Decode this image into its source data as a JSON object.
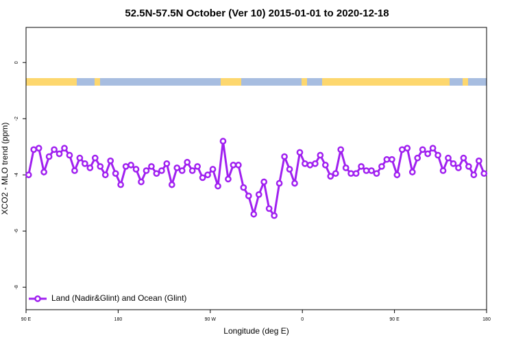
{
  "chart_data": {
    "type": "line",
    "title": "52.5N-57.5N October (Ver 10)   2015-01-01 to 2020-12-18",
    "xlabel": "Longitude (deg E)",
    "ylabel": "XCO2 - MLO trend (ppm)",
    "xlim": [
      90,
      540
    ],
    "xticks": [
      {
        "value": 90,
        "label": "90 E"
      },
      {
        "value": 180,
        "label": "180"
      },
      {
        "value": 270,
        "label": "90 W"
      },
      {
        "value": 360,
        "label": "0"
      },
      {
        "value": 450,
        "label": "90 E"
      },
      {
        "value": 540,
        "label": "180"
      }
    ],
    "ylim": [
      -8.8,
      1.25
    ],
    "yticks": [
      0,
      -2,
      -4,
      -6,
      -8
    ],
    "legend": "bottom-left",
    "x": [
      92.5,
      97.5,
      102.5,
      107.5,
      112.5,
      117.5,
      122.5,
      127.5,
      132.5,
      137.5,
      142.5,
      147.5,
      152.5,
      157.5,
      162.5,
      167.5,
      172.5,
      177.5,
      182.5,
      187.5,
      192.5,
      197.5,
      202.5,
      207.5,
      212.5,
      217.5,
      222.5,
      227.5,
      232.5,
      237.5,
      242.5,
      247.5,
      252.5,
      257.5,
      262.5,
      267.5,
      272.5,
      277.5,
      282.5,
      287.5,
      292.5,
      297.5,
      302.5,
      307.5,
      312.5,
      317.5,
      322.5,
      327.5,
      332.5,
      337.5,
      342.5,
      347.5,
      352.5,
      357.5,
      362.5,
      367.5,
      372.5,
      377.5,
      382.5,
      387.5,
      392.5,
      397.5,
      402.5,
      407.5,
      412.5,
      417.5,
      422.5,
      427.5,
      432.5,
      437.5,
      442.5,
      447.5,
      452.5,
      457.5,
      462.5,
      467.5,
      472.5,
      477.5,
      482.5,
      487.5,
      492.5,
      497.5,
      502.5,
      507.5,
      512.5,
      517.5,
      522.5,
      527.5,
      532.5,
      537.5
    ],
    "series": [
      {
        "name": "Land (Nadir&Glint) and Ocean (Glint)",
        "color": "#a020f0",
        "values": [
          -4.0,
          -3.1,
          -3.05,
          -3.9,
          -3.35,
          -3.1,
          -3.25,
          -3.05,
          -3.3,
          -3.85,
          -3.4,
          -3.6,
          -3.75,
          -3.4,
          -3.7,
          -4.0,
          -3.5,
          -3.95,
          -4.35,
          -3.7,
          -3.65,
          -3.8,
          -4.25,
          -3.85,
          -3.7,
          -3.95,
          -3.85,
          -3.6,
          -4.35,
          -3.75,
          -3.85,
          -3.55,
          -3.85,
          -3.7,
          -4.1,
          -4.0,
          -3.8,
          -4.4,
          -2.8,
          -4.15,
          -3.65,
          -3.65,
          -4.45,
          -4.75,
          -5.4,
          -4.7,
          -4.25,
          -5.2,
          -5.45,
          -4.3,
          -3.35,
          -3.8,
          -4.3,
          -3.2,
          -3.6,
          -3.65,
          -3.6,
          -3.3,
          -3.65,
          -4.05,
          -3.95,
          -3.1,
          -3.75,
          -3.95,
          -3.95,
          -3.7,
          -3.85,
          -3.85,
          -3.95,
          -3.7,
          -3.45,
          -3.45,
          -4.0,
          -3.1,
          -3.05,
          -3.9,
          -3.4,
          -3.1,
          -3.25,
          -3.05,
          -3.3,
          -3.85,
          -3.4,
          -3.6,
          -3.75,
          -3.4,
          -3.7,
          -4.0,
          -3.5,
          -3.95
        ]
      }
    ]
  }
}
